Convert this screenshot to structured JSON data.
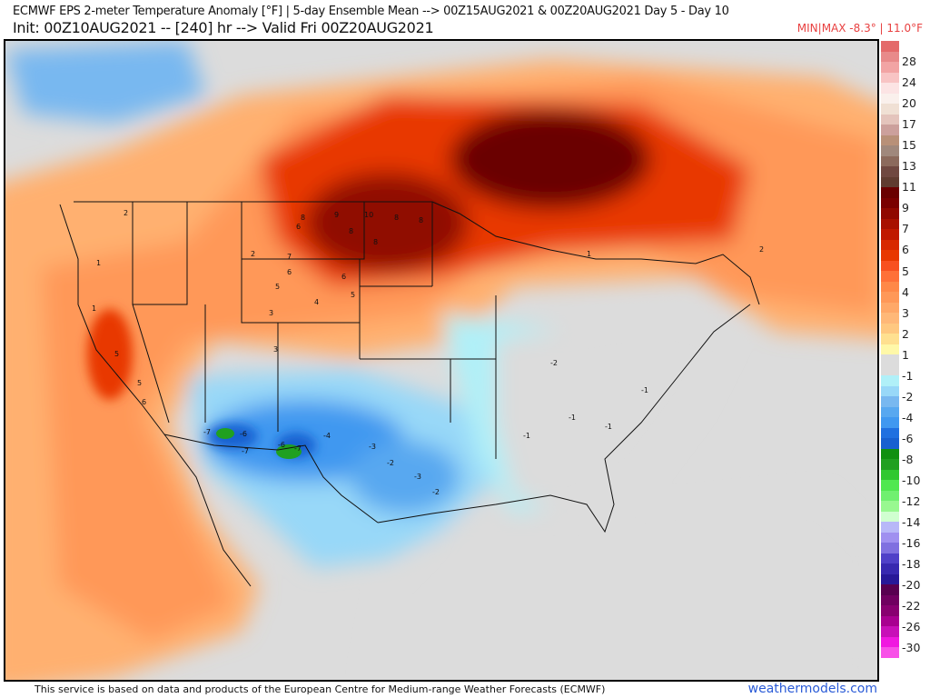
{
  "header": {
    "title": "ECMWF EPS 2-meter Temperature Anomaly [°F] | 5-day Ensemble Mean --> 00Z15AUG2021 & 00Z20AUG2021   Day 5 - Day 10",
    "subtitle": "Init: 00Z10AUG2021 -- [240] hr --> Valid Fri 00Z20AUG2021",
    "minmax": "MIN|MAX -8.3° | 11.0°F"
  },
  "colorbar": {
    "labels": [
      "28",
      "24",
      "20",
      "17",
      "15",
      "13",
      "11",
      "9",
      "7",
      "6",
      "5",
      "4",
      "3",
      "2",
      "1",
      "-1",
      "-2",
      "-4",
      "-6",
      "-8",
      "-10",
      "-12",
      "-14",
      "-16",
      "-18",
      "-20",
      "-22",
      "-26",
      "-30"
    ],
    "colors": [
      "#e46a6a",
      "#e88a8a",
      "#f2a4a4",
      "#f8c4c4",
      "#fce4e4",
      "#faf0ec",
      "#f0e0d4",
      "#e4c4bc",
      "#cca09c",
      "#b89078",
      "#a0887c",
      "#8c6a5c",
      "#704840",
      "#603c30",
      "#6a0000",
      "#7a0000",
      "#900800",
      "#a81000",
      "#c01800",
      "#d82800",
      "#e83800",
      "#f85020",
      "#ff7038",
      "#ff8848",
      "#ff9858",
      "#ffa868",
      "#ffb878",
      "#ffc880",
      "#ffe090",
      "#fff8a8",
      "#dcdcdc",
      "#dcdcdc",
      "#b0f0f8",
      "#98d8f8",
      "#78b8f0",
      "#58a8f0",
      "#4098f0",
      "#2070e0",
      "#1860d0",
      "#109010",
      "#20a020",
      "#30c830",
      "#50e850",
      "#70f070",
      "#98f890",
      "#d0ffd0",
      "#b8b8f8",
      "#a090f0",
      "#8070e0",
      "#5040c8",
      "#3828b0",
      "#281898",
      "#580050",
      "#700060",
      "#880070",
      "#a80090",
      "#c810b8",
      "#f018e0",
      "#f850e8"
    ]
  },
  "map": {
    "contour_labels": [
      "10",
      "9",
      "8",
      "8",
      "8",
      "8",
      "8",
      "7",
      "6",
      "5",
      "6",
      "6",
      "5",
      "4",
      "3",
      "2",
      "1",
      "1",
      "2",
      "3",
      "5",
      "6",
      "5",
      "-7",
      "-6",
      "-7",
      "-6",
      "-7",
      "-4",
      "-3",
      "-3",
      "-2",
      "-2",
      "-1",
      "-1",
      "-1",
      "-2",
      "-1",
      "1",
      "2"
    ]
  },
  "footer": {
    "credit": "This service is based on data and products of the European Centre for Medium-range Weather Forecasts (ECMWF)",
    "site": "weathermodels.com"
  }
}
